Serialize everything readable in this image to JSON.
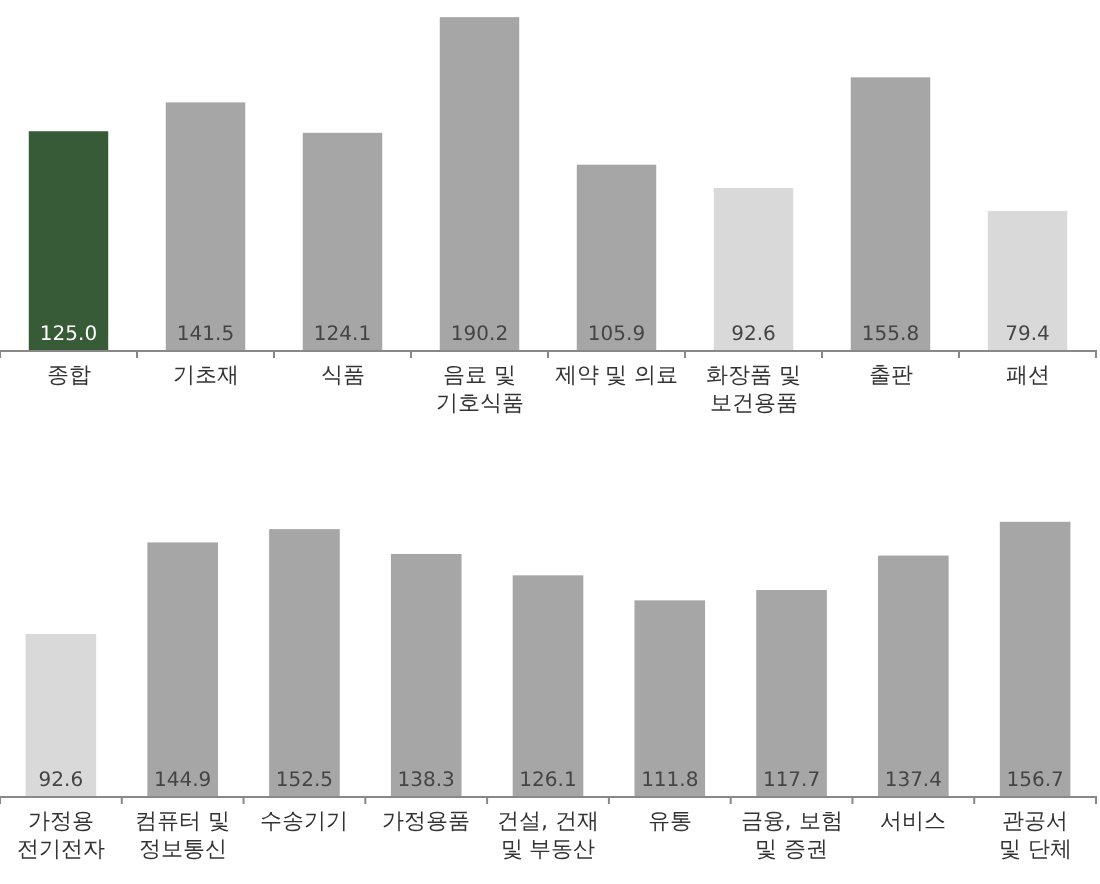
{
  "chart_data": [
    {
      "type": "bar",
      "categories": [
        "종합",
        "기초재",
        "식품",
        "음료 및\n기호식품",
        "제약 및 의료",
        "화장품 및\n보건용품",
        "출판",
        "패션"
      ],
      "values": [
        125.0,
        141.5,
        124.1,
        190.2,
        105.9,
        92.6,
        155.8,
        79.4
      ],
      "colors": [
        "#375a37",
        "#a6a6a6",
        "#a6a6a6",
        "#a6a6a6",
        "#a6a6a6",
        "#d9d9d9",
        "#a6a6a6",
        "#d9d9d9"
      ],
      "value_labels": [
        "125.0",
        "141.5",
        "124.1",
        "190.2",
        "105.9",
        "92.6",
        "155.8",
        "79.4"
      ]
    },
    {
      "type": "bar",
      "categories": [
        "가정용\n전기전자",
        "컴퓨터 및\n정보통신",
        "수송기기",
        "가정용품",
        "건설, 건재\n및 부동산",
        "유통",
        "금융, 보험\n및 증권",
        "서비스",
        "관공서\n및 단체"
      ],
      "values": [
        92.6,
        144.9,
        152.5,
        138.3,
        126.1,
        111.8,
        117.7,
        137.4,
        156.7
      ],
      "colors": [
        "#d9d9d9",
        "#a6a6a6",
        "#a6a6a6",
        "#a6a6a6",
        "#a6a6a6",
        "#a6a6a6",
        "#a6a6a6",
        "#a6a6a6",
        "#a6a6a6"
      ],
      "value_labels": [
        "92.6",
        "144.9",
        "152.5",
        "138.3",
        "126.1",
        "111.8",
        "117.7",
        "137.4",
        "156.7"
      ]
    }
  ]
}
